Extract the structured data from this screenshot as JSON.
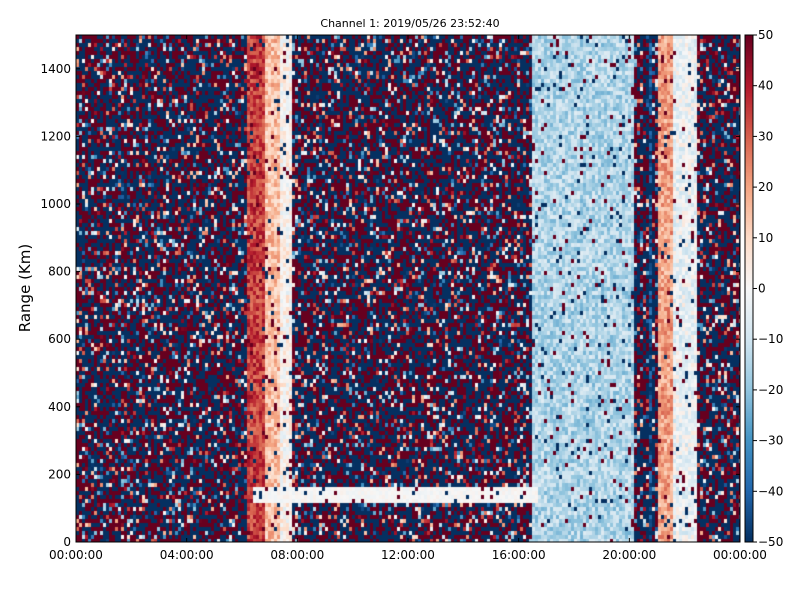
{
  "chart_data": {
    "type": "heatmap",
    "title": "Channel 1: 2019/05/26 23:52:40",
    "xlabel": "",
    "ylabel": "Range (Km)",
    "x_ticks": [
      "00:00:00",
      "04:00:00",
      "08:00:00",
      "12:00:00",
      "16:00:00",
      "20:00:00",
      "00:00:00"
    ],
    "x_tick_hours": [
      0,
      4,
      8,
      12,
      16,
      20,
      24
    ],
    "xlim_hours": [
      0,
      24
    ],
    "y_ticks": [
      "0",
      "200",
      "400",
      "600",
      "800",
      "1000",
      "1200",
      "1400"
    ],
    "y_tick_values": [
      0,
      200,
      400,
      600,
      800,
      1000,
      1200,
      1400
    ],
    "ylim": [
      0,
      1500
    ],
    "colorbar": {
      "ticks": [
        "50",
        "40",
        "30",
        "20",
        "10",
        "0",
        "−10",
        "−20",
        "−30",
        "−40",
        "−50"
      ],
      "tick_values": [
        50,
        40,
        30,
        20,
        10,
        0,
        -10,
        -20,
        -30,
        -40,
        -50
      ],
      "range": [
        -50,
        50
      ],
      "colormap": "RdBu_r"
    },
    "value_features": [
      {
        "description": "strong positive band",
        "hours": [
          6.2,
          6.8
        ],
        "value": 35
      },
      {
        "description": "moderate positive band",
        "hours": [
          6.8,
          7.4
        ],
        "value": 15
      },
      {
        "description": "near-zero band",
        "hours": [
          7.4,
          7.8
        ],
        "value": 2
      },
      {
        "description": "negative region",
        "hours": [
          16.5,
          20.2
        ],
        "value": -15
      },
      {
        "description": "strong negative stripe",
        "hours": [
          20.7,
          20.85
        ],
        "value": -45
      },
      {
        "description": "positive band",
        "hours": [
          21.0,
          21.6
        ],
        "value": 20
      },
      {
        "description": "near-zero band",
        "hours": [
          21.6,
          22.5
        ],
        "value": -3
      },
      {
        "description": "near-zero horizontal streak",
        "hours": [
          6.4,
          16.7
        ],
        "range_km": [
          120,
          160
        ],
        "value": 0
      }
    ],
    "noise_regions": [
      {
        "hours": [
          0,
          6.2
        ]
      },
      {
        "hours": [
          7.8,
          16.5
        ]
      },
      {
        "hours": [
          22.5,
          24
        ]
      }
    ]
  }
}
